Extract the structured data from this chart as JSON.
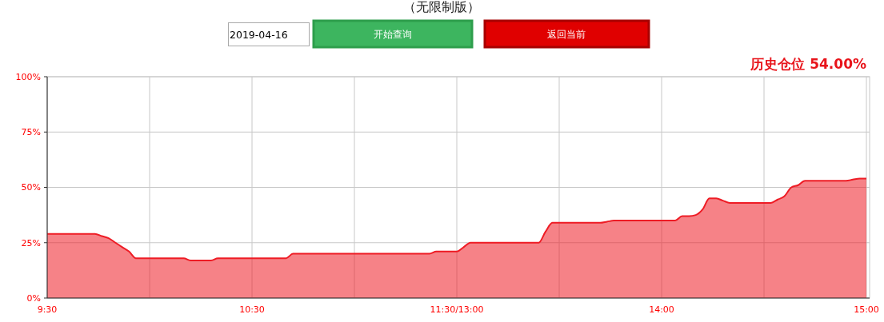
{
  "chart_data": {
    "type": "area",
    "title": "（无限制版）",
    "annotations": [
      "2019-04-16",
      "开始查询",
      "返回当前",
      "历史仓位 54.00%"
    ],
    "categories": [
      "9:30",
      null,
      null,
      null,
      null,
      null,
      null,
      null,
      null,
      null,
      null,
      null,
      null,
      null,
      null,
      null,
      null,
      null,
      null,
      null,
      null,
      null,
      null,
      null,
      null,
      null,
      null,
      null,
      null,
      null,
      "10:30",
      null,
      null,
      null,
      null,
      null,
      null,
      null,
      null,
      null,
      null,
      null,
      null,
      null,
      null,
      null,
      null,
      null,
      null,
      null,
      null,
      null,
      null,
      null,
      null,
      null,
      null,
      null,
      null,
      null,
      "11:30/13:00",
      null,
      null,
      null,
      null,
      null,
      null,
      null,
      null,
      null,
      null,
      null,
      null,
      null,
      null,
      null,
      null,
      null,
      null,
      null,
      null,
      null,
      null,
      null,
      null,
      null,
      null,
      null,
      null,
      null,
      "14:00",
      null,
      null,
      null,
      null,
      null,
      null,
      null,
      null,
      null,
      null,
      null,
      null,
      null,
      null,
      null,
      null,
      null,
      null,
      null,
      null,
      null,
      null,
      null,
      null,
      null,
      null,
      null,
      null,
      null,
      "15:00"
    ],
    "series": [
      {
        "color": "#ee1c25",
        "values": [
          29,
          29,
          29,
          29,
          29,
          29,
          29,
          29,
          28,
          27,
          25,
          23,
          21,
          18,
          18,
          18,
          18,
          18,
          18,
          18,
          18,
          17,
          17,
          17,
          17,
          18,
          18,
          18,
          18,
          18,
          18,
          18,
          18,
          18,
          18,
          18,
          20,
          20,
          20,
          20,
          20,
          20,
          20,
          20,
          20,
          20,
          20,
          20,
          20,
          20,
          20,
          20,
          20,
          20,
          20,
          20,
          20,
          21,
          21,
          21,
          21,
          23,
          25,
          25,
          25,
          25,
          25,
          25,
          25,
          25,
          25,
          25,
          25,
          30,
          34,
          34,
          34,
          34,
          34,
          34,
          34,
          34,
          34.5,
          35,
          35,
          35,
          35,
          35,
          35,
          35,
          35,
          35,
          35,
          37,
          37,
          37.5,
          40,
          45,
          45,
          44,
          43,
          43,
          43,
          43,
          43,
          43,
          43,
          44.5,
          46,
          50,
          51,
          53,
          53,
          53,
          53,
          53,
          53,
          53,
          53.5,
          54,
          54
        ]
      }
    ],
    "ylim": [
      0,
      100
    ],
    "yticks": [
      {
        "value": 0,
        "label": "0%"
      },
      {
        "value": 25,
        "label": "25%"
      },
      {
        "value": 50,
        "label": "50%"
      },
      {
        "value": 75,
        "label": "75%"
      },
      {
        "value": 100,
        "label": "100%"
      }
    ],
    "grid": true
  }
}
